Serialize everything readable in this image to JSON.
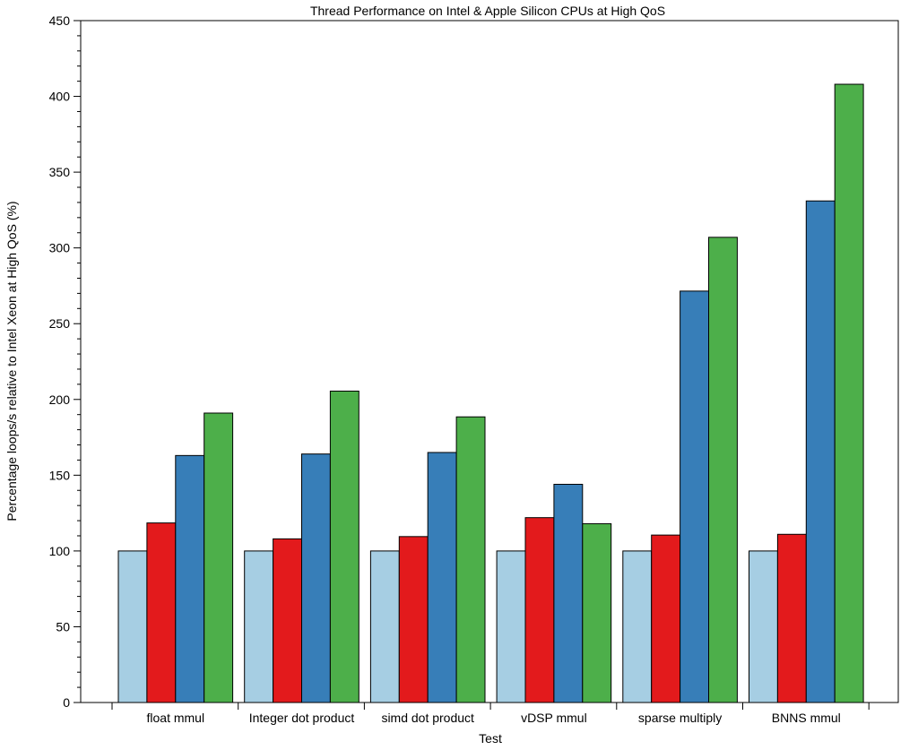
{
  "chart_data": {
    "type": "bar",
    "title": "Thread Performance on Intel & Apple Silicon CPUs at High QoS",
    "xlabel": "Test",
    "ylabel": "Percentage loops/s relative to Intel Xeon at High QoS (%)",
    "ylim": [
      0,
      450
    ],
    "yticks": [
      0,
      50,
      100,
      150,
      200,
      250,
      300,
      350,
      400,
      450
    ],
    "grid": false,
    "legend": "none",
    "categories": [
      "float mmul",
      "Integer dot product",
      "simd dot product",
      "vDSP mmul",
      "sparse multiply",
      "BNNS mmul"
    ],
    "series": [
      {
        "color": "#a6cee3",
        "values": [
          100,
          100,
          100,
          100,
          100,
          100
        ]
      },
      {
        "color": "#e31a1c",
        "values": [
          118.5,
          108,
          109.5,
          122,
          110.5,
          111
        ]
      },
      {
        "color": "#377eb8",
        "values": [
          163,
          164,
          165,
          144,
          271.5,
          331
        ]
      },
      {
        "color": "#4daf4a",
        "values": [
          191,
          205.5,
          188.5,
          118,
          307,
          408
        ]
      }
    ]
  }
}
